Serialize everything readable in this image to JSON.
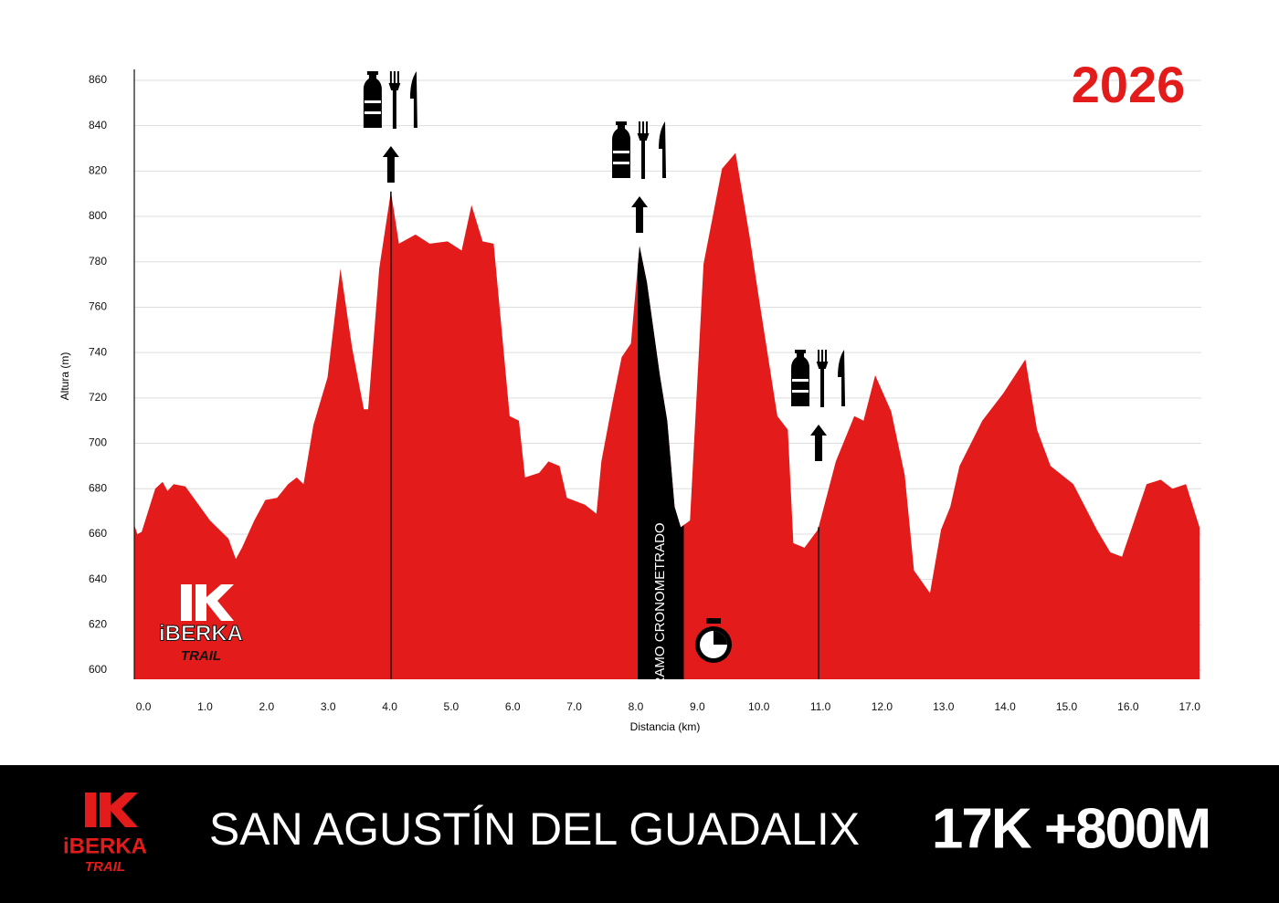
{
  "chart_data": {
    "type": "area",
    "year": "2026",
    "title": "SAN AGUSTÍN DEL GUADALIX",
    "summary": "17K +800M",
    "x_label": "Distancia (km)",
    "y_label": "Altura (m)",
    "brand": "iBERKA",
    "brand_sub": "TRAIL",
    "color": "#e41b1b",
    "x": [
      -0.15,
      -0.1,
      -0.03,
      0.19,
      0.31,
      0.39,
      0.49,
      0.68,
      1.08,
      1.38,
      1.5,
      1.6,
      1.8,
      1.98,
      2.17,
      2.35,
      2.49,
      2.6,
      2.76,
      2.99,
      3.2,
      3.39,
      3.58,
      3.65,
      3.83,
      4.02,
      4.15,
      4.42,
      4.65,
      4.94,
      5.17,
      5.33,
      5.51,
      5.69,
      5.95,
      6.1,
      6.2,
      6.43,
      6.58,
      6.76,
      6.88,
      7.17,
      7.36,
      7.44,
      7.62,
      7.77,
      7.92,
      8.06,
      8.18,
      8.39,
      8.51,
      8.63,
      8.73,
      8.88,
      9.1,
      9.4,
      9.62,
      9.85,
      10.0,
      10.3,
      10.47,
      10.56,
      10.74,
      10.96,
      11.25,
      11.55,
      11.7,
      11.89,
      12.15,
      12.37,
      12.52,
      12.78,
      12.96,
      13.11,
      13.26,
      13.63,
      13.97,
      14.33,
      14.52,
      14.74,
      15.11,
      15.49,
      15.71,
      15.9,
      16.3,
      16.53,
      16.72,
      16.94,
      17.16
    ],
    "values": [
      664,
      660,
      661,
      680,
      683,
      679,
      682,
      681,
      666,
      658,
      649,
      654,
      666,
      675,
      676,
      682,
      685,
      682,
      708,
      729,
      777,
      742,
      715,
      715,
      777,
      811,
      788,
      792,
      788,
      789,
      785,
      805,
      789,
      788,
      712,
      710,
      685,
      687,
      692,
      690,
      676,
      673,
      669,
      692,
      718,
      738,
      744,
      787,
      771,
      730,
      710,
      672,
      663,
      666,
      779,
      821,
      828,
      791,
      764,
      712,
      706,
      656,
      654,
      662,
      692,
      712,
      710,
      730,
      714,
      686,
      644,
      634,
      662,
      672,
      690,
      710,
      722,
      737,
      706,
      690,
      682,
      662,
      652,
      650,
      682,
      684,
      680,
      682,
      663
    ],
    "timed_section": {
      "label": "TRAMO CRONOMETRADO",
      "x_range": [
        8.03,
        8.78
      ]
    },
    "aid_stations": [
      4.02,
      8.06,
      10.97
    ],
    "xlim": [
      -0.15,
      17.16
    ],
    "ylim": [
      596,
      864
    ],
    "xticks": [
      {
        "value": 0,
        "label": "0.0"
      },
      {
        "value": 1,
        "label": "1.0"
      },
      {
        "value": 2,
        "label": "2.0"
      },
      {
        "value": 3,
        "label": "3.0"
      },
      {
        "value": 4,
        "label": "4.0"
      },
      {
        "value": 5,
        "label": "5.0"
      },
      {
        "value": 6,
        "label": "6.0"
      },
      {
        "value": 7,
        "label": "7.0"
      },
      {
        "value": 8,
        "label": "8.0"
      },
      {
        "value": 9,
        "label": "9.0"
      },
      {
        "value": 10,
        "label": "10.0"
      },
      {
        "value": 11,
        "label": "11.0"
      },
      {
        "value": 12,
        "label": "12.0"
      },
      {
        "value": 13,
        "label": "13.0"
      },
      {
        "value": 14,
        "label": "14.0"
      },
      {
        "value": 15,
        "label": "15.0"
      },
      {
        "value": 16,
        "label": "16.0"
      },
      {
        "value": 17,
        "label": "17.0"
      }
    ],
    "yticks": [
      600,
      620,
      640,
      660,
      680,
      700,
      720,
      740,
      760,
      780,
      800,
      820,
      840,
      860
    ],
    "grid": true
  }
}
